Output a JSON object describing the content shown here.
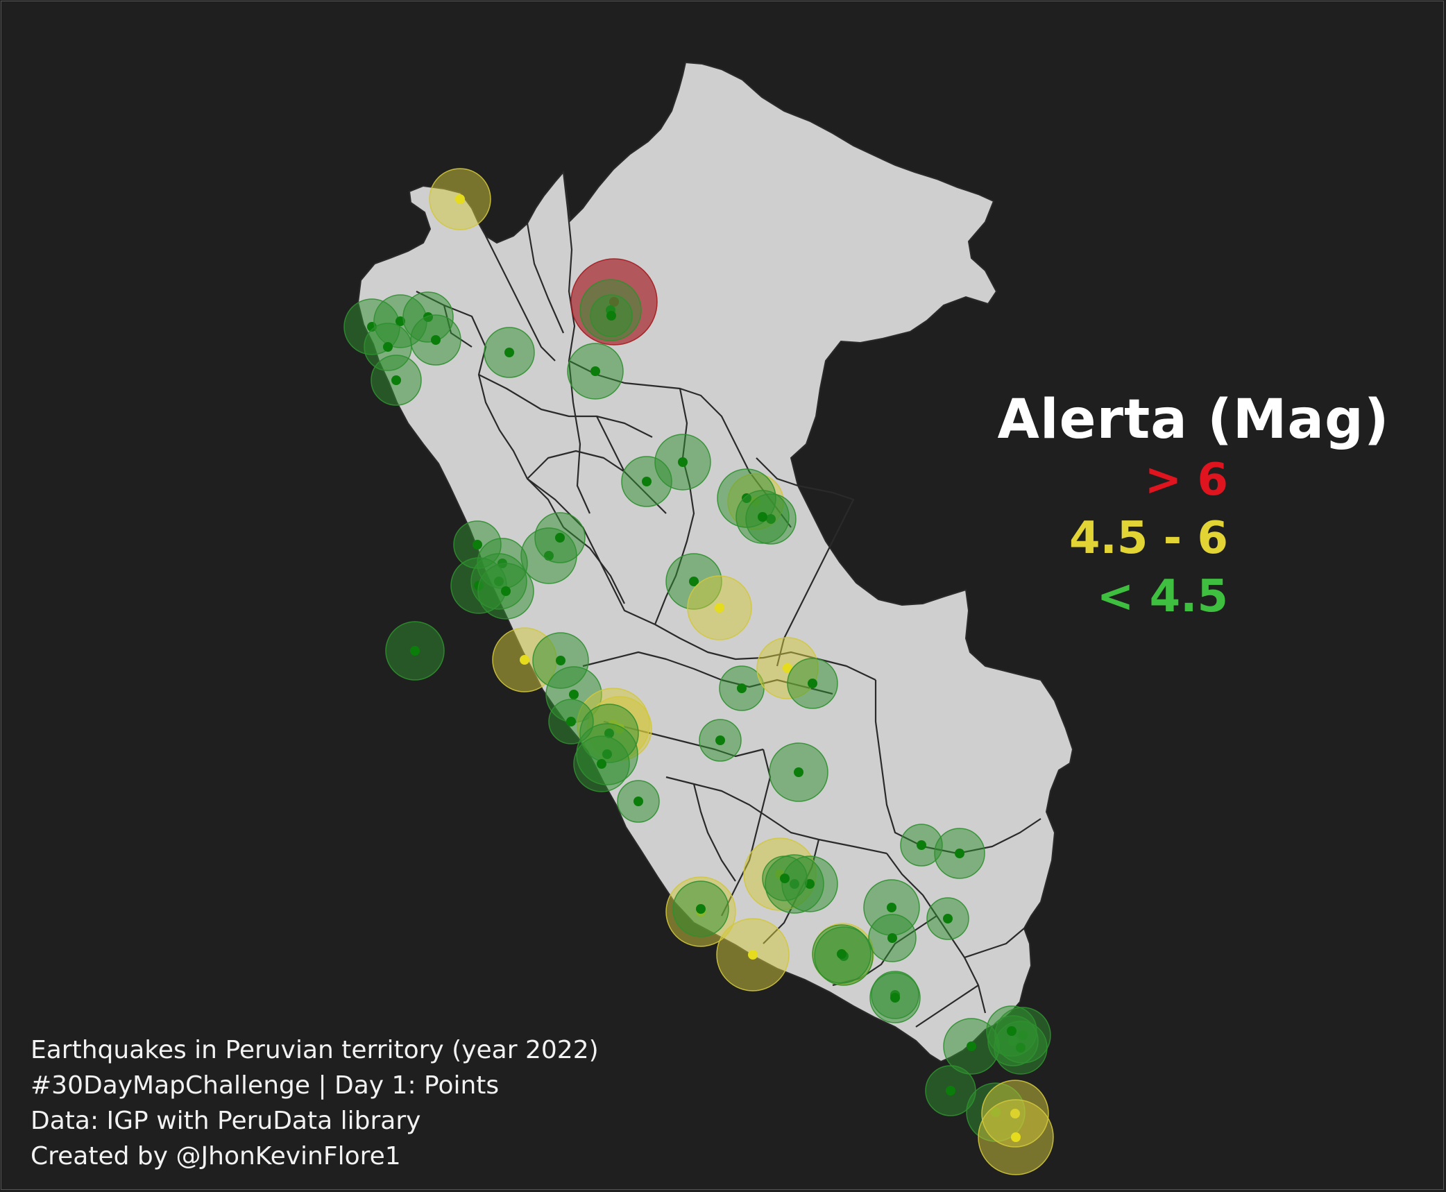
{
  "map": {
    "background": "#1f1f1f",
    "land_color": "#cfcfcf",
    "border_color": "#2a2a2a"
  },
  "legend": {
    "title": "Alerta (Mag)",
    "items": [
      {
        "label": "> 6",
        "color": "#e0141e"
      },
      {
        "label": "4.5 - 6",
        "color": "#e3d435"
      },
      {
        "label": "< 4.5",
        "color": "#3fbf3f"
      }
    ]
  },
  "credits": [
    "Earthquakes in Peruvian territory (year 2022)",
    "#30DayMapChallenge | Day 1: Points",
    "Data: IGP with PeruData library",
    "Created by @JhonKevinFlore1"
  ],
  "alert_colors": {
    "red": {
      "fill": "#a3191e",
      "dot": "#c4001a"
    },
    "yellow": {
      "fill": "#d1c83c",
      "dot": "#e6dc1e"
    },
    "green": {
      "fill": "#2f8f2f",
      "dot": "#0b7d0b"
    }
  }
}
